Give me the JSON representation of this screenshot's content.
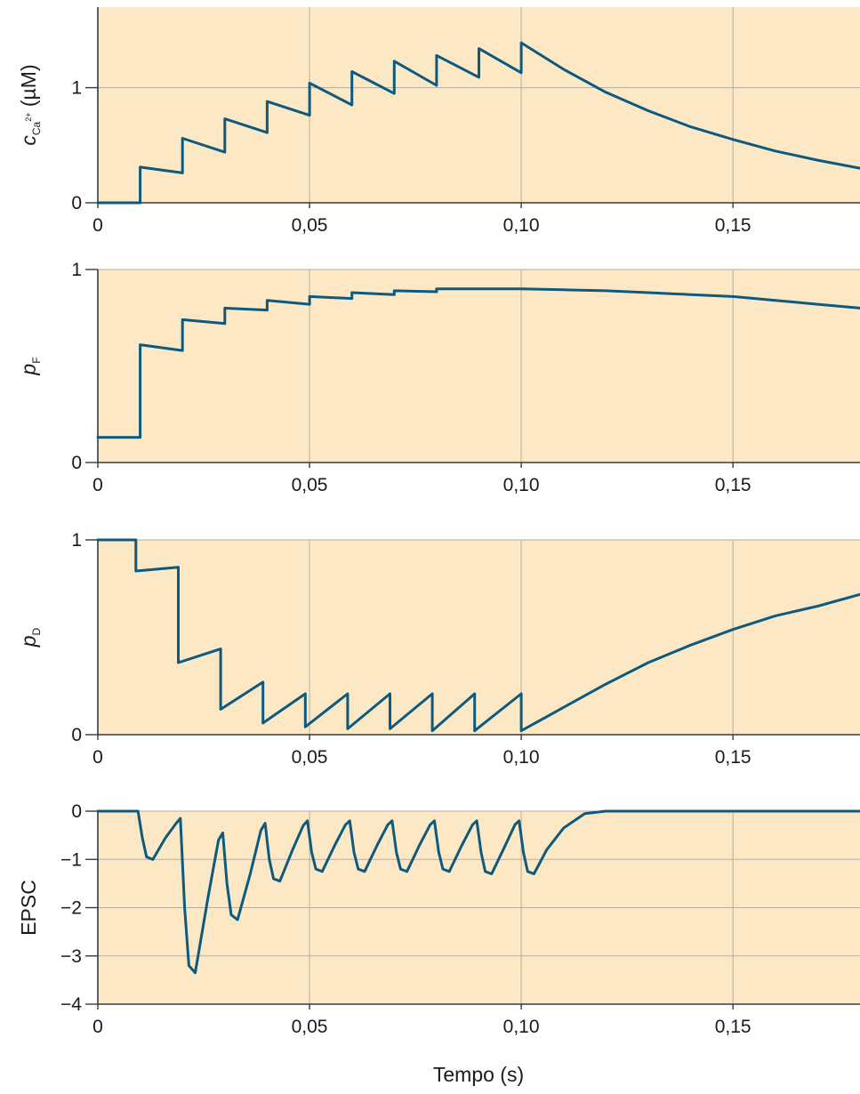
{
  "colors": {
    "plot_background": "#fde8c6",
    "line": "#0d5a7e",
    "grid": "#b9ad9c",
    "axis": "#3a3a3a"
  },
  "x_axis_title": "Tempo (s)",
  "chart_data": [
    {
      "type": "line",
      "ylabel": {
        "symbol": "c",
        "subscript": "Ca",
        "superscript": "2+",
        "unit": " (µM)"
      },
      "xlim": [
        0,
        0.18
      ],
      "ylim": [
        0,
        1.7
      ],
      "xticks": [
        0,
        0.05,
        0.1,
        0.15
      ],
      "xtick_labels": [
        "0",
        "0,05",
        "0,10",
        "0,15"
      ],
      "yticks": [
        0,
        1
      ],
      "ytick_labels": [
        "0",
        "1"
      ],
      "grid": true,
      "series": [
        {
          "x": [
            0,
            0.01,
            0.01,
            0.02,
            0.02,
            0.03,
            0.03,
            0.04,
            0.04,
            0.05,
            0.05,
            0.06,
            0.06,
            0.07,
            0.07,
            0.08,
            0.08,
            0.09,
            0.09,
            0.1,
            0.1,
            0.11,
            0.12,
            0.13,
            0.14,
            0.15,
            0.16,
            0.17,
            0.18
          ],
          "y": [
            0,
            0,
            0.31,
            0.26,
            0.56,
            0.44,
            0.73,
            0.61,
            0.88,
            0.76,
            1.04,
            0.85,
            1.14,
            0.95,
            1.23,
            1.02,
            1.28,
            1.09,
            1.34,
            1.13,
            1.39,
            1.16,
            0.96,
            0.8,
            0.66,
            0.55,
            0.45,
            0.37,
            0.3
          ]
        }
      ]
    },
    {
      "type": "line",
      "ylabel": {
        "symbol": "p",
        "subscript": "F",
        "superscript": "",
        "unit": ""
      },
      "xlim": [
        0,
        0.18
      ],
      "ylim": [
        0,
        1
      ],
      "xticks": [
        0,
        0.05,
        0.1,
        0.15
      ],
      "xtick_labels": [
        "0",
        "0,05",
        "0,10",
        "0,15"
      ],
      "yticks": [
        0,
        1
      ],
      "ytick_labels": [
        "0",
        "1"
      ],
      "grid": true,
      "series": [
        {
          "x": [
            0,
            0.01,
            0.01,
            0.02,
            0.02,
            0.03,
            0.03,
            0.04,
            0.04,
            0.05,
            0.05,
            0.06,
            0.06,
            0.07,
            0.07,
            0.08,
            0.08,
            0.09,
            0.1,
            0.11,
            0.12,
            0.13,
            0.14,
            0.15,
            0.16,
            0.17,
            0.18
          ],
          "y": [
            0.13,
            0.13,
            0.61,
            0.58,
            0.74,
            0.72,
            0.8,
            0.79,
            0.84,
            0.82,
            0.86,
            0.85,
            0.88,
            0.87,
            0.89,
            0.885,
            0.9,
            0.9,
            0.9,
            0.895,
            0.89,
            0.88,
            0.87,
            0.86,
            0.84,
            0.82,
            0.8
          ]
        }
      ]
    },
    {
      "type": "line",
      "ylabel": {
        "symbol": "p",
        "subscript": "D",
        "superscript": "",
        "unit": ""
      },
      "xlim": [
        0,
        0.18
      ],
      "ylim": [
        0,
        1
      ],
      "xticks": [
        0,
        0.05,
        0.1,
        0.15
      ],
      "xtick_labels": [
        "0",
        "0,05",
        "0,10",
        "0,15"
      ],
      "yticks": [
        0,
        1
      ],
      "ytick_labels": [
        "0",
        "1"
      ],
      "grid": true,
      "series": [
        {
          "x": [
            0,
            0.009,
            0.009,
            0.019,
            0.019,
            0.029,
            0.029,
            0.039,
            0.039,
            0.049,
            0.049,
            0.059,
            0.059,
            0.069,
            0.069,
            0.079,
            0.079,
            0.089,
            0.089,
            0.1,
            0.1,
            0.105,
            0.11,
            0.12,
            0.13,
            0.14,
            0.15,
            0.16,
            0.17,
            0.18
          ],
          "y": [
            1,
            1,
            0.84,
            0.86,
            0.37,
            0.44,
            0.13,
            0.27,
            0.06,
            0.21,
            0.04,
            0.21,
            0.03,
            0.21,
            0.03,
            0.21,
            0.02,
            0.21,
            0.02,
            0.21,
            0.02,
            0.08,
            0.14,
            0.26,
            0.37,
            0.46,
            0.54,
            0.61,
            0.66,
            0.72
          ]
        }
      ]
    },
    {
      "type": "line",
      "ylabel": {
        "symbol": "EPSC",
        "subscript": "",
        "superscript": "",
        "unit": ""
      },
      "xlim": [
        0,
        0.18
      ],
      "ylim": [
        -4,
        0
      ],
      "xticks": [
        0,
        0.05,
        0.1,
        0.15
      ],
      "xtick_labels": [
        "0",
        "0,05",
        "0,10",
        "0,15"
      ],
      "yticks": [
        0,
        -1,
        -2,
        -3,
        -4
      ],
      "ytick_labels": [
        "0",
        "−1",
        "−2",
        "−3",
        "−4"
      ],
      "grid": true,
      "series": [
        {
          "x": [
            0,
            0.0095,
            0.0105,
            0.0115,
            0.013,
            0.016,
            0.0185,
            0.0195,
            0.0205,
            0.0215,
            0.023,
            0.026,
            0.0285,
            0.0295,
            0.0305,
            0.0315,
            0.033,
            0.036,
            0.0385,
            0.0395,
            0.0405,
            0.0415,
            0.043,
            0.046,
            0.0485,
            0.0495,
            0.0505,
            0.0515,
            0.053,
            0.056,
            0.0585,
            0.0595,
            0.0605,
            0.0615,
            0.063,
            0.066,
            0.0685,
            0.0695,
            0.0705,
            0.0715,
            0.073,
            0.076,
            0.0785,
            0.0795,
            0.0805,
            0.0815,
            0.083,
            0.086,
            0.0885,
            0.0895,
            0.0905,
            0.0915,
            0.093,
            0.096,
            0.0985,
            0.0995,
            0.1005,
            0.1015,
            0.103,
            0.106,
            0.11,
            0.115,
            0.12,
            0.18
          ],
          "y": [
            0,
            0,
            -0.55,
            -0.95,
            -1.0,
            -0.55,
            -0.25,
            -0.15,
            -2.0,
            -3.2,
            -3.35,
            -1.8,
            -0.6,
            -0.45,
            -1.5,
            -2.15,
            -2.25,
            -1.3,
            -0.4,
            -0.25,
            -1.0,
            -1.4,
            -1.45,
            -0.8,
            -0.3,
            -0.2,
            -0.85,
            -1.2,
            -1.25,
            -0.7,
            -0.28,
            -0.2,
            -0.85,
            -1.2,
            -1.25,
            -0.7,
            -0.28,
            -0.2,
            -0.85,
            -1.2,
            -1.25,
            -0.7,
            -0.28,
            -0.2,
            -0.85,
            -1.2,
            -1.25,
            -0.7,
            -0.28,
            -0.2,
            -0.85,
            -1.25,
            -1.3,
            -0.75,
            -0.28,
            -0.2,
            -0.85,
            -1.25,
            -1.3,
            -0.8,
            -0.35,
            -0.05,
            0,
            0
          ]
        }
      ]
    }
  ]
}
